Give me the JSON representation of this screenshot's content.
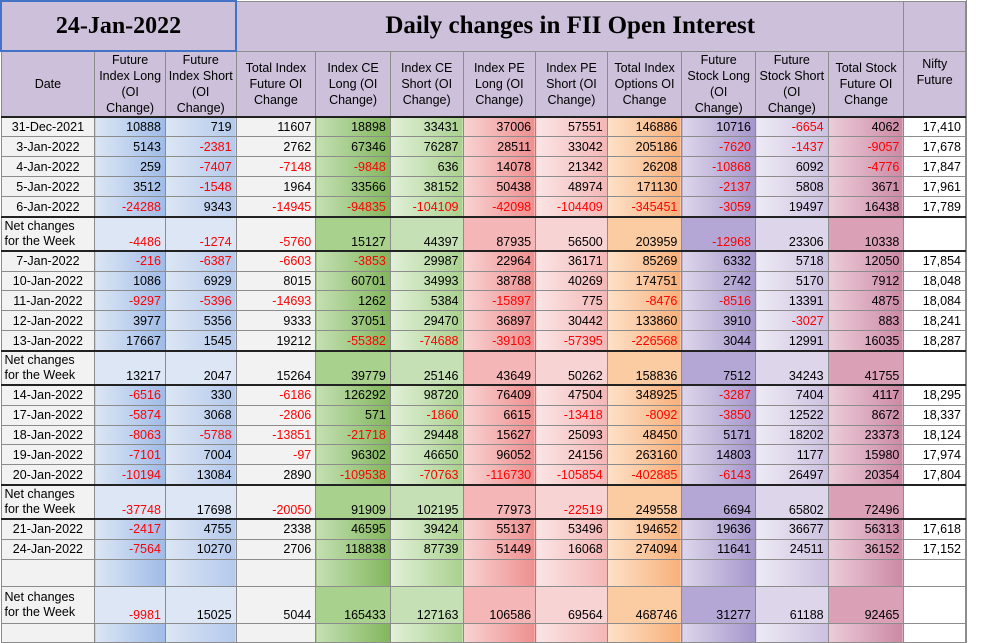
{
  "title": {
    "date": "24-Jan-2022",
    "main": "Daily changes in FII Open Interest"
  },
  "headers": [
    "Date",
    "Future Index Long (OI Change)",
    "Future Index Short (OI Change)",
    "Total Index Future OI Change",
    "Index CE Long (OI Change)",
    "Index CE Short (OI Change)",
    "Index PE Long (OI Change)",
    "Index PE Short (OI Change)",
    "Total Index Options OI Change",
    "Future Stock Long (OI Change)",
    "Future Stock Short (OI Change)",
    "Total Stock Future OI Change",
    "Nifty Future"
  ],
  "net_label": "Net changes for the Week",
  "blocks": [
    {
      "rows": [
        [
          "31-Dec-2021",
          "10888",
          "719",
          "11607",
          "18898",
          "33431",
          "37006",
          "57551",
          "146886",
          "10716",
          "-6654",
          "4062",
          "17,410"
        ],
        [
          "3-Jan-2022",
          "5143",
          "-2381",
          "2762",
          "67346",
          "76287",
          "28511",
          "33042",
          "205186",
          "-7620",
          "-1437",
          "-9057",
          "17,678"
        ],
        [
          "4-Jan-2022",
          "259",
          "-7407",
          "-7148",
          "-9848",
          "636",
          "14078",
          "21342",
          "26208",
          "-10868",
          "6092",
          "-4776",
          "17,847"
        ],
        [
          "5-Jan-2022",
          "3512",
          "-1548",
          "1964",
          "33566",
          "38152",
          "50438",
          "48974",
          "171130",
          "-2137",
          "5808",
          "3671",
          "17,961"
        ],
        [
          "6-Jan-2022",
          "-24288",
          "9343",
          "-14945",
          "-94835",
          "-104109",
          "-42098",
          "-104409",
          "-345451",
          "-3059",
          "19497",
          "16438",
          "17,789"
        ]
      ],
      "net": [
        "-4486",
        "-1274",
        "-5760",
        "15127",
        "44397",
        "87935",
        "56500",
        "203959",
        "-12968",
        "23306",
        "10338",
        ""
      ]
    },
    {
      "rows": [
        [
          "7-Jan-2022",
          "-216",
          "-6387",
          "-6603",
          "-3853",
          "29987",
          "22964",
          "36171",
          "85269",
          "6332",
          "5718",
          "12050",
          "17,854"
        ],
        [
          "10-Jan-2022",
          "1086",
          "6929",
          "8015",
          "60701",
          "34993",
          "38788",
          "40269",
          "174751",
          "2742",
          "5170",
          "7912",
          "18,048"
        ],
        [
          "11-Jan-2022",
          "-9297",
          "-5396",
          "-14693",
          "1262",
          "5384",
          "-15897",
          "775",
          "-8476",
          "-8516",
          "13391",
          "4875",
          "18,084"
        ],
        [
          "12-Jan-2022",
          "3977",
          "5356",
          "9333",
          "37051",
          "29470",
          "36897",
          "30442",
          "133860",
          "3910",
          "-3027",
          "883",
          "18,241"
        ],
        [
          "13-Jan-2022",
          "17667",
          "1545",
          "19212",
          "-55382",
          "-74688",
          "-39103",
          "-57395",
          "-226568",
          "3044",
          "12991",
          "16035",
          "18,287"
        ]
      ],
      "net": [
        "13217",
        "2047",
        "15264",
        "39779",
        "25146",
        "43649",
        "50262",
        "158836",
        "7512",
        "34243",
        "41755",
        ""
      ]
    },
    {
      "rows": [
        [
          "14-Jan-2022",
          "-6516",
          "330",
          "-6186",
          "126292",
          "98720",
          "76409",
          "47504",
          "348925",
          "-3287",
          "7404",
          "4117",
          "18,295"
        ],
        [
          "17-Jan-2022",
          "-5874",
          "3068",
          "-2806",
          "571",
          "-1860",
          "6615",
          "-13418",
          "-8092",
          "-3850",
          "12522",
          "8672",
          "18,337"
        ],
        [
          "18-Jan-2022",
          "-8063",
          "-5788",
          "-13851",
          "-21718",
          "29448",
          "15627",
          "25093",
          "48450",
          "5171",
          "18202",
          "23373",
          "18,124"
        ],
        [
          "19-Jan-2022",
          "-7101",
          "7004",
          "-97",
          "96302",
          "46650",
          "96052",
          "24156",
          "263160",
          "14803",
          "1177",
          "15980",
          "17,974"
        ],
        [
          "20-Jan-2022",
          "-10194",
          "13084",
          "2890",
          "-109538",
          "-70763",
          "-116730",
          "-105854",
          "-402885",
          "-6143",
          "26497",
          "20354",
          "17,804"
        ]
      ],
      "net": [
        "-37748",
        "17698",
        "-20050",
        "91909",
        "102195",
        "77973",
        "-22519",
        "249558",
        "6694",
        "65802",
        "72496",
        ""
      ]
    },
    {
      "rows": [
        [
          "21-Jan-2022",
          "-2417",
          "4755",
          "2338",
          "46595",
          "39424",
          "55137",
          "53496",
          "194652",
          "19636",
          "36677",
          "56313",
          "17,618"
        ],
        [
          "24-Jan-2022",
          "-7564",
          "10270",
          "2706",
          "118838",
          "87739",
          "51449",
          "16068",
          "274094",
          "11641",
          "24511",
          "36152",
          "17,152"
        ]
      ],
      "net": [
        "-9981",
        "15025",
        "5044",
        "165433",
        "127163",
        "106586",
        "69564",
        "468746",
        "31277",
        "61188",
        "92465",
        ""
      ]
    }
  ],
  "colors": {
    "title_bg": "#ccc0da",
    "negative_text": "#ff0000",
    "future_index": "#dce6f4",
    "index_ce_long": "#a9d18e",
    "index_ce_short": "#c5e0b4",
    "index_pe_long": "#f4b6b6",
    "index_pe_short": "#f8d3d3",
    "total_options": "#fbcba2",
    "future_stock_long": "#b4a7d6",
    "future_stock_short": "#ddd6ea",
    "total_stock_future": "#d9a0b6"
  }
}
